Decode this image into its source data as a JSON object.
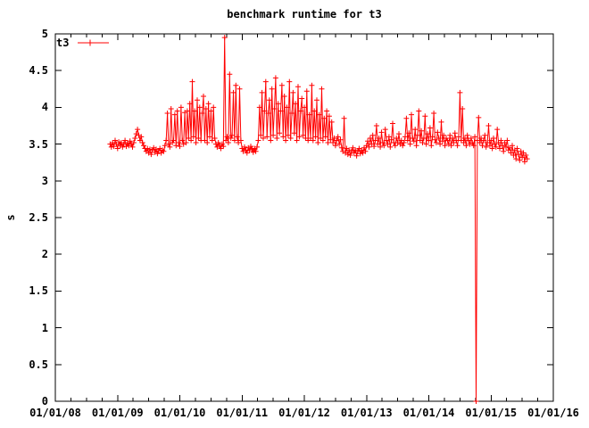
{
  "title": "benchmark runtime for t3",
  "legend": {
    "label": "t3",
    "position": "top-left"
  },
  "colors": {
    "series": "#ff0000",
    "axis": "#000000",
    "text": "#000000",
    "background": "#ffffff"
  },
  "chart_data": {
    "type": "line",
    "title": "benchmark runtime for t3",
    "xlabel": "",
    "ylabel": "s",
    "series_name": "t3",
    "marker": "plus",
    "grid": false,
    "legend_position": "top-left",
    "x_axis": {
      "kind": "date",
      "start_year": 2008,
      "end_year": 2016,
      "tick_labels": [
        "01/01/08",
        "01/01/09",
        "01/01/10",
        "01/01/11",
        "01/01/12",
        "01/01/13",
        "01/01/14",
        "01/01/15",
        "01/01/16"
      ],
      "minor_ticks_per_interval": 3
    },
    "y_axis": {
      "min": 0,
      "max": 5,
      "tick_step": 0.5,
      "tick_labels": [
        "0",
        "0.5",
        "1",
        "1.5",
        "2",
        "2.5",
        "3",
        "3.5",
        "4",
        "4.5",
        "5"
      ]
    },
    "series": [
      {
        "name": "t3",
        "t_start": 2008.88,
        "t_step": 0.02,
        "values": [
          3.5,
          3.46,
          3.52,
          3.47,
          3.55,
          3.5,
          3.44,
          3.53,
          3.48,
          3.52,
          3.46,
          3.5,
          3.55,
          3.47,
          3.52,
          3.48,
          3.54,
          3.5,
          3.46,
          3.52,
          3.58,
          3.64,
          3.7,
          3.62,
          3.55,
          3.6,
          3.52,
          3.48,
          3.44,
          3.4,
          3.44,
          3.38,
          3.43,
          3.36,
          3.42,
          3.45,
          3.39,
          3.43,
          3.37,
          3.41,
          3.44,
          3.38,
          3.42,
          3.4,
          3.48,
          3.55,
          3.92,
          3.5,
          3.46,
          3.98,
          3.52,
          3.55,
          3.9,
          3.48,
          3.95,
          3.52,
          3.47,
          4.0,
          3.55,
          3.5,
          3.93,
          3.52,
          3.95,
          3.58,
          4.05,
          3.55,
          4.35,
          3.6,
          3.95,
          3.52,
          4.1,
          3.58,
          4.0,
          3.55,
          3.92,
          4.15,
          3.55,
          3.98,
          3.52,
          4.05,
          3.6,
          3.95,
          3.55,
          4.0,
          3.58,
          3.5,
          3.46,
          3.52,
          3.48,
          3.44,
          3.5,
          3.47,
          4.95,
          3.55,
          3.6,
          3.52,
          4.45,
          3.58,
          3.62,
          4.2,
          3.55,
          4.3,
          3.6,
          3.52,
          4.25,
          3.55,
          3.44,
          3.4,
          3.46,
          3.42,
          3.38,
          3.45,
          3.41,
          3.47,
          3.43,
          3.39,
          3.44,
          3.4,
          3.46,
          3.55,
          4.0,
          3.62,
          4.2,
          3.58,
          3.95,
          4.35,
          3.6,
          3.92,
          4.1,
          3.55,
          4.25,
          3.62,
          3.98,
          4.4,
          3.58,
          4.05,
          3.65,
          3.95,
          4.3,
          3.6,
          4.15,
          3.55,
          4.0,
          3.62,
          4.35,
          3.58,
          3.92,
          4.2,
          3.65,
          4.05,
          3.55,
          4.28,
          3.6,
          3.95,
          4.12,
          3.62,
          4.0,
          3.58,
          4.22,
          3.55,
          3.9,
          3.58,
          4.3,
          3.55,
          3.95,
          3.6,
          4.1,
          3.52,
          3.9,
          3.58,
          4.25,
          3.55,
          3.85,
          3.6,
          3.95,
          3.52,
          3.88,
          3.56,
          3.8,
          3.52,
          3.58,
          3.48,
          3.55,
          3.6,
          3.5,
          3.56,
          3.45,
          3.4,
          3.85,
          3.38,
          3.44,
          3.36,
          3.42,
          3.35,
          3.4,
          3.45,
          3.38,
          3.42,
          3.34,
          3.4,
          3.44,
          3.37,
          3.42,
          3.38,
          3.45,
          3.4,
          3.48,
          3.54,
          3.46,
          3.58,
          3.5,
          3.62,
          3.47,
          3.55,
          3.75,
          3.5,
          3.58,
          3.46,
          3.66,
          3.52,
          3.48,
          3.7,
          3.55,
          3.5,
          3.6,
          3.46,
          3.56,
          3.78,
          3.52,
          3.48,
          3.58,
          3.52,
          3.64,
          3.5,
          3.55,
          3.48,
          3.52,
          3.6,
          3.85,
          3.55,
          3.65,
          3.5,
          3.9,
          3.58,
          3.54,
          3.7,
          3.48,
          3.62,
          3.95,
          3.55,
          3.68,
          3.52,
          3.58,
          3.88,
          3.5,
          3.64,
          3.55,
          3.72,
          3.48,
          3.6,
          3.92,
          3.56,
          3.52,
          3.66,
          3.58,
          3.5,
          3.8,
          3.54,
          3.62,
          3.48,
          3.58,
          3.55,
          3.5,
          3.62,
          3.48,
          3.58,
          3.52,
          3.65,
          3.55,
          3.48,
          3.6,
          4.2,
          3.55,
          3.98,
          3.52,
          3.58,
          3.48,
          3.62,
          3.55,
          3.5,
          3.58,
          3.52,
          3.48,
          3.6,
          0.0,
          3.55,
          3.86,
          3.52,
          3.58,
          3.48,
          3.55,
          3.62,
          3.46,
          3.52,
          3.75,
          3.48,
          3.55,
          3.44,
          3.58,
          3.5,
          3.46,
          3.7,
          3.52,
          3.44,
          3.55,
          3.48,
          3.4,
          3.52,
          3.46,
          3.55,
          3.42,
          3.45,
          3.38,
          3.48,
          3.35,
          3.42,
          3.3,
          3.44,
          3.36,
          3.28,
          3.4,
          3.32,
          3.38,
          3.26,
          3.35,
          3.3
        ]
      }
    ]
  }
}
